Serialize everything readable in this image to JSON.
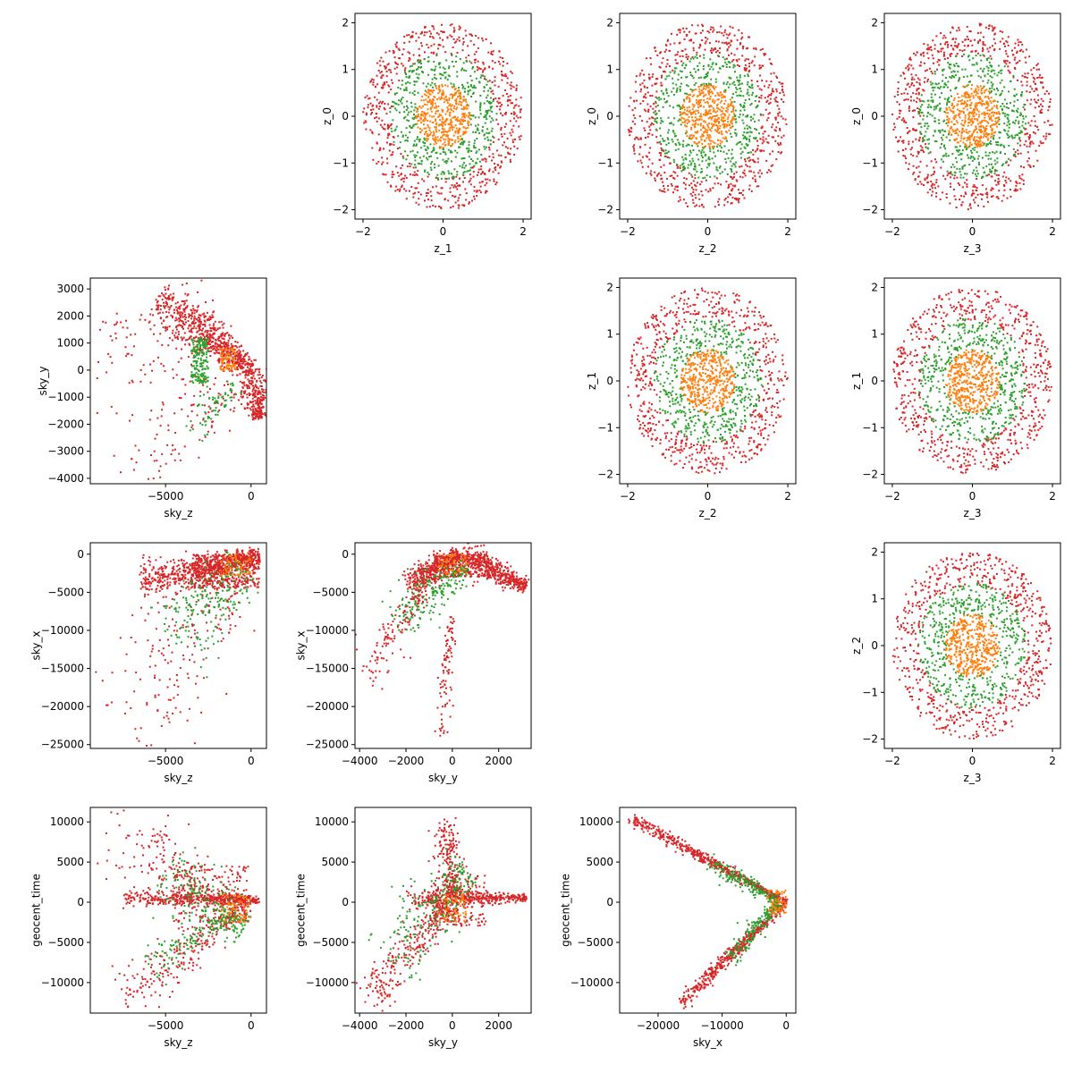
{
  "colors": {
    "outer": "#d62728",
    "middle": "#2ca02c",
    "inner": "#ff7f0e"
  },
  "chart_data": [
    {
      "type": "scatter",
      "pattern": "disk",
      "row": 0,
      "col": 1,
      "xlabel": "z_1",
      "ylabel": "z_0",
      "xlim": [
        -2.2,
        2.2
      ],
      "ylim": [
        -2.2,
        2.2
      ],
      "xticks": [
        -2,
        0,
        2
      ],
      "yticks": [
        -2,
        -1,
        0,
        1,
        2
      ],
      "xtick_labels": [
        "−2",
        "0",
        "2"
      ],
      "ytick_labels": [
        "−2",
        "−1",
        "0",
        "1",
        "2"
      ],
      "series": [
        {
          "color": "outer",
          "radius": [
            1.3,
            2.0
          ],
          "n": 650
        },
        {
          "color": "middle",
          "radius": [
            0.65,
            1.35
          ],
          "n": 480
        },
        {
          "color": "inner",
          "radius": [
            0,
            0.68
          ],
          "n": 420
        }
      ]
    },
    {
      "type": "scatter",
      "pattern": "disk",
      "row": 0,
      "col": 2,
      "xlabel": "z_2",
      "ylabel": "z_0",
      "xlim": [
        -2.2,
        2.2
      ],
      "ylim": [
        -2.2,
        2.2
      ],
      "xticks": [
        -2,
        0,
        2
      ],
      "yticks": [
        -2,
        -1,
        0,
        1,
        2
      ],
      "xtick_labels": [
        "−2",
        "0",
        "2"
      ],
      "ytick_labels": [
        "−2",
        "−1",
        "0",
        "1",
        "2"
      ],
      "series": [
        {
          "color": "outer",
          "radius": [
            1.3,
            2.0
          ],
          "n": 650
        },
        {
          "color": "middle",
          "radius": [
            0.65,
            1.35
          ],
          "n": 480
        },
        {
          "color": "inner",
          "radius": [
            0,
            0.68
          ],
          "n": 420
        }
      ]
    },
    {
      "type": "scatter",
      "pattern": "disk",
      "row": 0,
      "col": 3,
      "xlabel": "z_3",
      "ylabel": "z_0",
      "xlim": [
        -2.2,
        2.2
      ],
      "ylim": [
        -2.2,
        2.2
      ],
      "xticks": [
        -2,
        0,
        2
      ],
      "yticks": [
        -2,
        -1,
        0,
        1,
        2
      ],
      "xtick_labels": [
        "−2",
        "0",
        "2"
      ],
      "ytick_labels": [
        "−2",
        "−1",
        "0",
        "1",
        "2"
      ],
      "series": [
        {
          "color": "outer",
          "radius": [
            1.3,
            2.0
          ],
          "n": 650
        },
        {
          "color": "middle",
          "radius": [
            0.65,
            1.35
          ],
          "n": 480
        },
        {
          "color": "inner",
          "radius": [
            0,
            0.68
          ],
          "n": 420
        }
      ]
    },
    {
      "type": "scatter",
      "pattern": "disk",
      "row": 1,
      "col": 2,
      "xlabel": "z_2",
      "ylabel": "z_1",
      "xlim": [
        -2.2,
        2.2
      ],
      "ylim": [
        -2.2,
        2.2
      ],
      "xticks": [
        -2,
        0,
        2
      ],
      "yticks": [
        -2,
        -1,
        0,
        1,
        2
      ],
      "xtick_labels": [
        "−2",
        "0",
        "2"
      ],
      "ytick_labels": [
        "−2",
        "−1",
        "0",
        "1",
        "2"
      ],
      "series": [
        {
          "color": "outer",
          "radius": [
            1.3,
            2.0
          ],
          "n": 650
        },
        {
          "color": "middle",
          "radius": [
            0.65,
            1.35
          ],
          "n": 480
        },
        {
          "color": "inner",
          "radius": [
            0,
            0.68
          ],
          "n": 420
        }
      ]
    },
    {
      "type": "scatter",
      "pattern": "disk",
      "row": 1,
      "col": 3,
      "xlabel": "z_3",
      "ylabel": "z_1",
      "xlim": [
        -2.2,
        2.2
      ],
      "ylim": [
        -2.2,
        2.2
      ],
      "xticks": [
        -2,
        0,
        2
      ],
      "yticks": [
        -2,
        -1,
        0,
        1,
        2
      ],
      "xtick_labels": [
        "−2",
        "0",
        "2"
      ],
      "ytick_labels": [
        "−2",
        "−1",
        "0",
        "1",
        "2"
      ],
      "series": [
        {
          "color": "outer",
          "radius": [
            1.3,
            2.0
          ],
          "n": 650
        },
        {
          "color": "middle",
          "radius": [
            0.65,
            1.35
          ],
          "n": 480
        },
        {
          "color": "inner",
          "radius": [
            0,
            0.68
          ],
          "n": 420
        }
      ]
    },
    {
      "type": "scatter",
      "pattern": "disk",
      "row": 2,
      "col": 3,
      "xlabel": "z_3",
      "ylabel": "z_2",
      "xlim": [
        -2.2,
        2.2
      ],
      "ylim": [
        -2.2,
        2.2
      ],
      "xticks": [
        -2,
        0,
        2
      ],
      "yticks": [
        -2,
        -1,
        0,
        1,
        2
      ],
      "xtick_labels": [
        "−2",
        "0",
        "2"
      ],
      "ytick_labels": [
        "−2",
        "−1",
        "0",
        "1",
        "2"
      ],
      "series": [
        {
          "color": "outer",
          "radius": [
            1.3,
            2.0
          ],
          "n": 650
        },
        {
          "color": "middle",
          "radius": [
            0.65,
            1.35
          ],
          "n": 480
        },
        {
          "color": "inner",
          "radius": [
            0,
            0.68
          ],
          "n": 420
        }
      ]
    },
    {
      "type": "scatter",
      "pattern": "fan",
      "row": 1,
      "col": 0,
      "xlabel": "sky_z",
      "ylabel": "sky_y",
      "xlim": [
        -9400,
        900
      ],
      "ylim": [
        -4200,
        3400
      ],
      "xticks": [
        -5000,
        0
      ],
      "yticks": [
        -4000,
        -3000,
        -2000,
        -1000,
        0,
        1000,
        2000,
        3000
      ],
      "xtick_labels": [
        "−5000",
        "0"
      ],
      "ytick_labels": [
        "−4000",
        "−3000",
        "−2000",
        "−1000",
        "0",
        "1000",
        "2000",
        "3000"
      ],
      "clusters": [
        {
          "color": "outer",
          "n": 700,
          "from": [
            -5500,
            2700
          ],
          "to": [
            0,
            0
          ],
          "width": 320
        },
        {
          "color": "outer",
          "n": 260,
          "from": [
            0,
            0
          ],
          "to": [
            500,
            -1800
          ],
          "width": 250
        },
        {
          "color": "outer",
          "n": 110,
          "from": [
            -8000,
            -3800
          ],
          "to": [
            -800,
            -600
          ],
          "width": 550
        },
        {
          "color": "outer",
          "n": 80,
          "box": [
            [
              -9000,
              -500
            ],
            [
              -2500,
              2200
            ]
          ]
        },
        {
          "color": "middle",
          "n": 170,
          "box": [
            [
              -3500,
              -500
            ],
            [
              -2500,
              1200
            ]
          ]
        },
        {
          "color": "middle",
          "n": 70,
          "from": [
            -3500,
            -2300
          ],
          "to": [
            -1000,
            -500
          ],
          "width": 300
        },
        {
          "color": "inner",
          "n": 80,
          "box": [
            [
              -1800,
              0
            ],
            [
              -900,
              800
            ]
          ]
        }
      ]
    },
    {
      "type": "scatter",
      "pattern": "fan",
      "row": 2,
      "col": 0,
      "xlabel": "sky_z",
      "ylabel": "sky_x",
      "xlim": [
        -9400,
        900
      ],
      "ylim": [
        -25500,
        1500
      ],
      "xticks": [
        -5000,
        0
      ],
      "yticks": [
        -25000,
        -20000,
        -15000,
        -10000,
        -5000,
        0
      ],
      "xtick_labels": [
        "−5000",
        "0"
      ],
      "ytick_labels": [
        "−25000",
        "−20000",
        "−15000",
        "−10000",
        "−5000",
        "0"
      ],
      "clusters": [
        {
          "color": "outer",
          "n": 650,
          "from": [
            -6500,
            -3800
          ],
          "to": [
            500,
            -300
          ],
          "width": 600
        },
        {
          "color": "outer",
          "n": 400,
          "box": [
            [
              -3500,
              -4500
            ],
            [
              500,
              0
            ]
          ]
        },
        {
          "color": "outer",
          "n": 220,
          "from": [
            -7600,
            -23500
          ],
          "to": [
            -800,
            -1000
          ],
          "width": 2300
        },
        {
          "color": "middle",
          "n": 200,
          "from": [
            -4500,
            -12000
          ],
          "to": [
            -500,
            -1500
          ],
          "width": 1500
        },
        {
          "color": "inner",
          "n": 70,
          "box": [
            [
              -1800,
              -3000
            ],
            [
              0,
              0
            ]
          ]
        }
      ]
    },
    {
      "type": "scatter",
      "pattern": "fan",
      "row": 2,
      "col": 1,
      "xlabel": "sky_y",
      "ylabel": "sky_x",
      "xlim": [
        -4200,
        3400
      ],
      "ylim": [
        -25500,
        1500
      ],
      "xticks": [
        -4000,
        -2000,
        0,
        2000
      ],
      "yticks": [
        -25000,
        -20000,
        -15000,
        -10000,
        -5000,
        0
      ],
      "xtick_labels": [
        "−4000",
        "−2000",
        "0",
        "2000"
      ],
      "ytick_labels": [
        "−25000",
        "−20000",
        "−15000",
        "−10000",
        "−5000",
        "0"
      ],
      "clusters": [
        {
          "color": "outer",
          "n": 420,
          "from": [
            -2000,
            -4200
          ],
          "to": [
            300,
            0
          ],
          "width": 500
        },
        {
          "color": "outer",
          "n": 420,
          "from": [
            300,
            0
          ],
          "to": [
            3200,
            -4200
          ],
          "width": 500
        },
        {
          "color": "outer",
          "n": 320,
          "box": [
            [
              -800,
              -3000
            ],
            [
              1600,
              0
            ]
          ]
        },
        {
          "color": "outer",
          "n": 130,
          "from": [
            -3800,
            -16500
          ],
          "to": [
            -1200,
            -4500
          ],
          "width": 700
        },
        {
          "color": "outer",
          "n": 90,
          "from": [
            -500,
            -24000
          ],
          "to": [
            0,
            -8000
          ],
          "width": 350
        },
        {
          "color": "middle",
          "n": 200,
          "from": [
            -2500,
            -9000
          ],
          "to": [
            600,
            -1500
          ],
          "width": 900
        },
        {
          "color": "inner",
          "n": 60,
          "box": [
            [
              -600,
              -2500
            ],
            [
              600,
              0
            ]
          ]
        }
      ]
    },
    {
      "type": "scatter",
      "pattern": "fan",
      "row": 3,
      "col": 0,
      "xlabel": "sky_z",
      "ylabel": "geocent_time",
      "xlim": [
        -9400,
        900
      ],
      "ylim": [
        -13800,
        11800
      ],
      "xticks": [
        -5000,
        0
      ],
      "yticks": [
        -10000,
        -5000,
        0,
        5000,
        10000
      ],
      "xtick_labels": [
        "−5000",
        "0"
      ],
      "ytick_labels": [
        "−10000",
        "−5000",
        "0",
        "5000",
        "10000"
      ],
      "clusters": [
        {
          "color": "outer",
          "n": 420,
          "from": [
            -7500,
            500
          ],
          "to": [
            500,
            300
          ],
          "width": 250
        },
        {
          "color": "outer",
          "n": 130,
          "from": [
            -8500,
            10500
          ],
          "to": [
            -3000,
            3000
          ],
          "width": 1400
        },
        {
          "color": "outer",
          "n": 260,
          "from": [
            -7500,
            -12600
          ],
          "to": [
            -500,
            -500
          ],
          "width": 800
        },
        {
          "color": "outer",
          "n": 250,
          "box": [
            [
              -4500,
              -2500
            ],
            [
              0,
              4500
            ]
          ]
        },
        {
          "color": "middle",
          "n": 220,
          "from": [
            -5000,
            4000
          ],
          "to": [
            -500,
            -3500
          ],
          "width": 1200
        },
        {
          "color": "middle",
          "n": 100,
          "from": [
            -6000,
            -8000
          ],
          "to": [
            -1500,
            -2000
          ],
          "width": 600
        },
        {
          "color": "inner",
          "n": 70,
          "box": [
            [
              -1800,
              -2500
            ],
            [
              0,
              1000
            ]
          ]
        }
      ]
    },
    {
      "type": "scatter",
      "pattern": "fan",
      "row": 3,
      "col": 1,
      "xlabel": "sky_y",
      "ylabel": "geocent_time",
      "xlim": [
        -4200,
        3400
      ],
      "ylim": [
        -13800,
        11800
      ],
      "xticks": [
        -4000,
        -2000,
        0,
        2000
      ],
      "yticks": [
        -10000,
        -5000,
        0,
        5000,
        10000
      ],
      "xtick_labels": [
        "−4000",
        "−2000",
        "0",
        "2000"
      ],
      "ytick_labels": [
        "−10000",
        "−5000",
        "0",
        "5000",
        "10000"
      ],
      "clusters": [
        {
          "color": "outer",
          "n": 380,
          "from": [
            -2000,
            600
          ],
          "to": [
            3200,
            500
          ],
          "width": 300
        },
        {
          "color": "outer",
          "n": 260,
          "from": [
            -3800,
            -12500
          ],
          "to": [
            -200,
            -500
          ],
          "width": 800
        },
        {
          "color": "outer",
          "n": 200,
          "from": [
            -400,
            10500
          ],
          "to": [
            0,
            500
          ],
          "width": 600
        },
        {
          "color": "outer",
          "n": 200,
          "box": [
            [
              -800,
              -3000
            ],
            [
              1500,
              3500
            ]
          ]
        },
        {
          "color": "middle",
          "n": 230,
          "from": [
            -2800,
            -7500
          ],
          "to": [
            600,
            4500
          ],
          "width": 1500
        },
        {
          "color": "inner",
          "n": 70,
          "box": [
            [
              -600,
              -2500
            ],
            [
              600,
              1000
            ]
          ]
        }
      ]
    },
    {
      "type": "scatter",
      "pattern": "fan",
      "row": 3,
      "col": 2,
      "xlabel": "sky_x",
      "ylabel": "geocent_time",
      "xlim": [
        -26000,
        1500
      ],
      "ylim": [
        -13800,
        11800
      ],
      "xticks": [
        -20000,
        -10000,
        0
      ],
      "yticks": [
        -10000,
        -5000,
        0,
        5000,
        10000
      ],
      "xtick_labels": [
        "−20000",
        "−10000",
        "0"
      ],
      "ytick_labels": [
        "−10000",
        "−5000",
        "0",
        "5000",
        "10000"
      ],
      "clusters": [
        {
          "color": "outer",
          "n": 520,
          "from": [
            -24500,
            10500
          ],
          "to": [
            0,
            0
          ],
          "width": 220
        },
        {
          "color": "outer",
          "n": 460,
          "from": [
            -16500,
            -12700
          ],
          "to": [
            0,
            0
          ],
          "width": 280
        },
        {
          "color": "middle",
          "n": 180,
          "from": [
            -12000,
            5000
          ],
          "to": [
            -1000,
            0
          ],
          "width": 350
        },
        {
          "color": "middle",
          "n": 180,
          "from": [
            -9000,
            -7000
          ],
          "to": [
            -1000,
            0
          ],
          "width": 450
        },
        {
          "color": "inner",
          "n": 70,
          "box": [
            [
              -3000,
              -1500
            ],
            [
              0,
              1500
            ]
          ]
        }
      ]
    }
  ]
}
